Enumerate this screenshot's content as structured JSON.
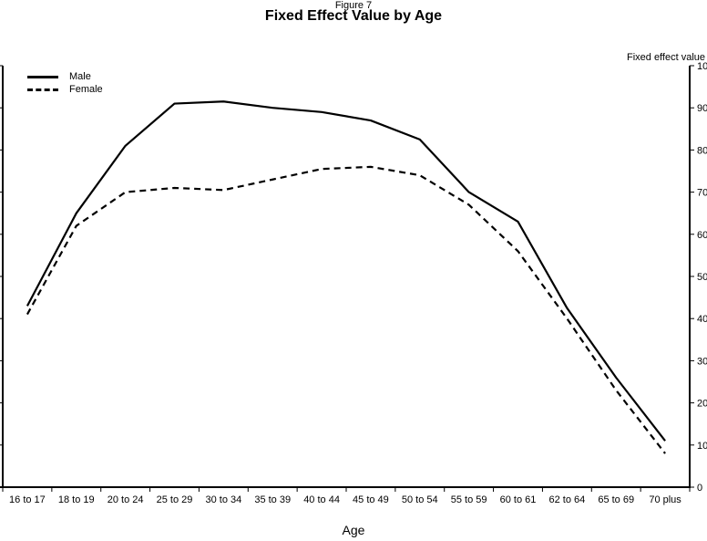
{
  "figure": {
    "label": "Figure 7",
    "title": "Fixed Effect Value by Age"
  },
  "chart_data": {
    "type": "line",
    "title": "Fixed Effect Value by Age",
    "subtitle": "Figure 7",
    "xlabel": "Age",
    "ylabel_right": "Fixed effect value",
    "ylim": [
      0,
      100
    ],
    "yticks": [
      0,
      10,
      20,
      30,
      40,
      50,
      60,
      70,
      80,
      90,
      100
    ],
    "grid": false,
    "legend_position": "top-left-inside",
    "line_color": "#000000",
    "background_color": "#ffffff",
    "categories": [
      "16 to 17",
      "18 to 19",
      "20 to 24",
      "25 to 29",
      "30 to 34",
      "35 to 39",
      "40 to 44",
      "45 to 49",
      "50 to 54",
      "55 to 59",
      "60 to 61",
      "62 to 64",
      "65 to 69",
      "70 plus"
    ],
    "series": [
      {
        "name": "Male",
        "style": "solid",
        "values": [
          43,
          65,
          81,
          91,
          91.5,
          90,
          89,
          87,
          82.5,
          70,
          63,
          42.5,
          26,
          11
        ]
      },
      {
        "name": "Female",
        "style": "dashed",
        "values": [
          41,
          62,
          70,
          71,
          70.5,
          73,
          75.5,
          76,
          74,
          67,
          56,
          40,
          23,
          8
        ]
      }
    ]
  }
}
